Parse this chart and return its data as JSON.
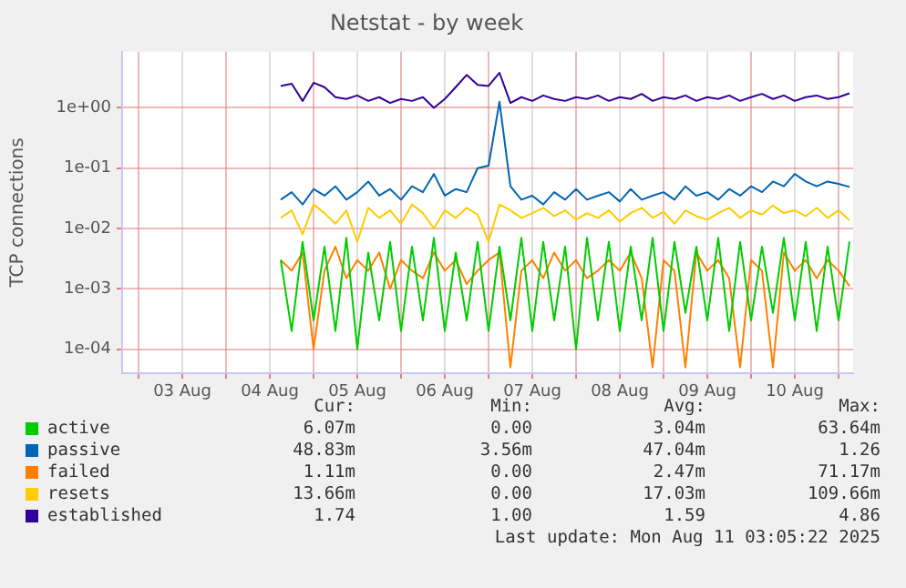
{
  "chart_data": {
    "type": "line",
    "title": "Netstat - by week",
    "ylabel": "TCP connections",
    "log": "y",
    "grid": true,
    "legend": "bottom",
    "marker": "none",
    "line_style": "solid",
    "ylim": [
      4e-05,
      8.5
    ],
    "yticks": [
      {
        "value": 0.0001,
        "label": "1e-04"
      },
      {
        "value": 0.001,
        "label": "1e-03"
      },
      {
        "value": 0.01,
        "label": "1e-02"
      },
      {
        "value": 0.1,
        "label": "1e-01"
      },
      {
        "value": 1,
        "label": "1e+00"
      }
    ],
    "xlim": [
      "2025-08-02T19:30",
      "2025-08-11T04:00"
    ],
    "xticks": [
      {
        "value": "2025-08-03",
        "label": null
      },
      {
        "value": "2025-08-03T12:00",
        "label": "03 Aug"
      },
      {
        "value": "2025-08-04",
        "label": null
      },
      {
        "value": "2025-08-04T12:00",
        "label": "04 Aug"
      },
      {
        "value": "2025-08-05",
        "label": null
      },
      {
        "value": "2025-08-05T12:00",
        "label": "05 Aug"
      },
      {
        "value": "2025-08-06",
        "label": null
      },
      {
        "value": "2025-08-06T12:00",
        "label": "06 Aug"
      },
      {
        "value": "2025-08-07",
        "label": null
      },
      {
        "value": "2025-08-07T12:00",
        "label": "07 Aug"
      },
      {
        "value": "2025-08-08",
        "label": null
      },
      {
        "value": "2025-08-08T12:00",
        "label": "08 Aug"
      },
      {
        "value": "2025-08-09",
        "label": null
      },
      {
        "value": "2025-08-09T12:00",
        "label": "09 Aug"
      },
      {
        "value": "2025-08-10",
        "label": null
      },
      {
        "value": "2025-08-10T12:00",
        "label": "10 Aug"
      },
      {
        "value": "2025-08-11",
        "label": null
      }
    ],
    "x": [
      "2025-08-04T15:00",
      "2025-08-04T18:00",
      "2025-08-04T21:00",
      "2025-08-05T00:00",
      "2025-08-05T03:00",
      "2025-08-05T06:00",
      "2025-08-05T09:00",
      "2025-08-05T12:00",
      "2025-08-05T15:00",
      "2025-08-05T18:00",
      "2025-08-05T21:00",
      "2025-08-06T00:00",
      "2025-08-06T03:00",
      "2025-08-06T06:00",
      "2025-08-06T09:00",
      "2025-08-06T12:00",
      "2025-08-06T15:00",
      "2025-08-06T18:00",
      "2025-08-06T21:00",
      "2025-08-07T00:00",
      "2025-08-07T03:00",
      "2025-08-07T06:00",
      "2025-08-07T09:00",
      "2025-08-07T12:00",
      "2025-08-07T15:00",
      "2025-08-07T18:00",
      "2025-08-07T21:00",
      "2025-08-08T00:00",
      "2025-08-08T03:00",
      "2025-08-08T06:00",
      "2025-08-08T09:00",
      "2025-08-08T12:00",
      "2025-08-08T15:00",
      "2025-08-08T18:00",
      "2025-08-08T21:00",
      "2025-08-09T00:00",
      "2025-08-09T03:00",
      "2025-08-09T06:00",
      "2025-08-09T09:00",
      "2025-08-09T12:00",
      "2025-08-09T15:00",
      "2025-08-09T18:00",
      "2025-08-09T21:00",
      "2025-08-10T00:00",
      "2025-08-10T03:00",
      "2025-08-10T06:00",
      "2025-08-10T09:00",
      "2025-08-10T12:00",
      "2025-08-10T15:00",
      "2025-08-10T18:00",
      "2025-08-10T21:00",
      "2025-08-11T00:00",
      "2025-08-11T03:00"
    ],
    "series": [
      {
        "name": "active",
        "color": "#00cc00",
        "values": [
          0.003,
          0.0002,
          0.006,
          0.0003,
          0.005,
          0.0002,
          0.007,
          0.0001,
          0.004,
          0.0003,
          0.006,
          0.0002,
          0.005,
          0.0003,
          0.007,
          0.0002,
          0.004,
          0.0003,
          0.006,
          0.0002,
          0.005,
          0.0003,
          0.007,
          0.0002,
          0.006,
          0.0003,
          0.005,
          0.0001,
          0.007,
          0.0003,
          0.006,
          0.0002,
          0.005,
          0.0003,
          0.007,
          0.0002,
          0.006,
          0.0004,
          0.005,
          0.0003,
          0.007,
          0.0002,
          0.006,
          0.0003,
          0.005,
          0.0004,
          0.007,
          0.0003,
          0.006,
          0.0002,
          0.005,
          0.0003,
          0.00607
        ]
      },
      {
        "name": "passive",
        "color": "#0066b3",
        "values": [
          0.03,
          0.04,
          0.025,
          0.045,
          0.035,
          0.05,
          0.03,
          0.04,
          0.06,
          0.035,
          0.045,
          0.03,
          0.05,
          0.04,
          0.08,
          0.035,
          0.045,
          0.04,
          0.1,
          0.11,
          1.26,
          0.05,
          0.03,
          0.035,
          0.025,
          0.04,
          0.03,
          0.045,
          0.03,
          0.035,
          0.04,
          0.028,
          0.045,
          0.03,
          0.035,
          0.04,
          0.03,
          0.05,
          0.035,
          0.04,
          0.03,
          0.045,
          0.035,
          0.05,
          0.04,
          0.06,
          0.05,
          0.08,
          0.06,
          0.05,
          0.06,
          0.055,
          0.0488
        ]
      },
      {
        "name": "failed",
        "color": "#ff8000",
        "values": [
          0.003,
          0.002,
          0.004,
          0.0001,
          0.002,
          0.005,
          0.0015,
          0.003,
          0.002,
          0.004,
          0.001,
          0.003,
          0.002,
          0.0015,
          0.004,
          0.002,
          0.003,
          0.0012,
          0.002,
          0.003,
          0.004,
          5e-05,
          0.002,
          0.003,
          0.0015,
          0.004,
          0.002,
          0.003,
          0.0015,
          0.002,
          0.003,
          0.002,
          0.004,
          0.0015,
          5e-05,
          0.003,
          0.002,
          5e-05,
          0.004,
          0.002,
          0.003,
          0.0015,
          5e-05,
          0.003,
          0.002,
          5e-05,
          0.004,
          0.002,
          0.003,
          0.0015,
          0.003,
          0.002,
          0.00111
        ]
      },
      {
        "name": "resets",
        "color": "#ffcc00",
        "values": [
          0.015,
          0.02,
          0.008,
          0.025,
          0.018,
          0.012,
          0.02,
          0.006,
          0.022,
          0.015,
          0.02,
          0.012,
          0.025,
          0.018,
          0.01,
          0.02,
          0.015,
          0.022,
          0.017,
          0.006,
          0.025,
          0.02,
          0.015,
          0.018,
          0.022,
          0.016,
          0.02,
          0.014,
          0.018,
          0.015,
          0.02,
          0.013,
          0.018,
          0.022,
          0.015,
          0.019,
          0.012,
          0.02,
          0.016,
          0.014,
          0.018,
          0.022,
          0.015,
          0.02,
          0.017,
          0.024,
          0.018,
          0.02,
          0.016,
          0.022,
          0.015,
          0.02,
          0.01366
        ]
      },
      {
        "name": "established",
        "color": "#330099",
        "values": [
          2.3,
          2.5,
          1.3,
          2.6,
          2.2,
          1.5,
          1.4,
          1.6,
          1.3,
          1.5,
          1.2,
          1.4,
          1.3,
          1.5,
          1.0,
          1.4,
          2.2,
          3.5,
          2.4,
          2.3,
          3.8,
          1.2,
          1.5,
          1.3,
          1.6,
          1.4,
          1.3,
          1.5,
          1.4,
          1.6,
          1.3,
          1.5,
          1.4,
          1.7,
          1.3,
          1.5,
          1.4,
          1.6,
          1.3,
          1.5,
          1.4,
          1.6,
          1.3,
          1.5,
          1.7,
          1.4,
          1.6,
          1.3,
          1.5,
          1.6,
          1.4,
          1.5,
          1.74
        ]
      }
    ],
    "annotations": [
      "Cur:",
      "Min:",
      "Avg:",
      "Max:",
      "6.07m",
      "0.00",
      "3.04m",
      "63.64m",
      "48.83m",
      "3.56m",
      "47.04m",
      "1.26",
      "1.11m",
      "0.00",
      "2.47m",
      "71.17m",
      "13.66m",
      "0.00",
      "17.03m",
      "109.66m",
      "1.74",
      "1.00",
      "1.59",
      "4.86",
      "Last update: Mon Aug 11 03:05:22 2025"
    ]
  }
}
